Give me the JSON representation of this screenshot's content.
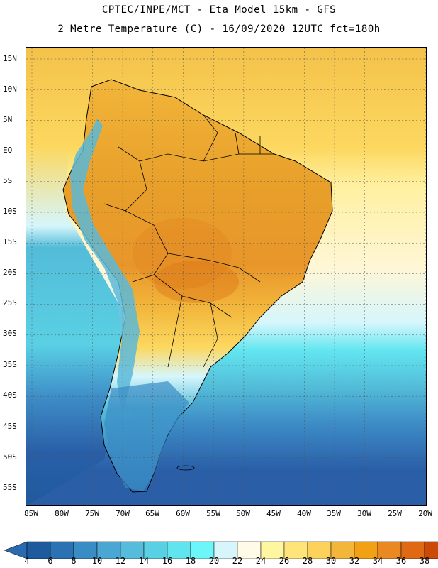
{
  "header": {
    "line1": "CPTEC/INPE/MCT -  Eta Model 15km - GFS",
    "line2": "2 Metre Temperature (C) - 16/09/2020 12UTC fct=180h"
  },
  "axes": {
    "lat_labels": [
      "15N",
      "10N",
      "5N",
      "EQ",
      "5S",
      "10S",
      "15S",
      "20S",
      "25S",
      "30S",
      "35S",
      "40S",
      "45S",
      "50S",
      "55S"
    ],
    "lon_labels": [
      "85W",
      "80W",
      "75W",
      "70W",
      "65W",
      "60W",
      "55W",
      "50W",
      "45W",
      "40W",
      "35W",
      "30W",
      "25W",
      "20W"
    ]
  },
  "colorbar": {
    "labels": [
      "4",
      "6",
      "8",
      "10",
      "12",
      "14",
      "16",
      "18",
      "20",
      "22",
      "24",
      "26",
      "28",
      "30",
      "32",
      "34",
      "36",
      "38"
    ],
    "colors": [
      "#1e5a9e",
      "#2a72b2",
      "#3a8cc4",
      "#4aa6d2",
      "#56bcdc",
      "#5ad0e4",
      "#60e4ee",
      "#6cf6fa",
      "#d6f6fc",
      "#fffbe6",
      "#fff6a0",
      "#ffe47a",
      "#fcd25a",
      "#f2b73a",
      "#f2a014",
      "#ea8822",
      "#e06a14",
      "#cc4a08"
    ],
    "under_color": "#2a6ab0",
    "over_color": "#c43c06"
  },
  "map_colors": {
    "ocean_deep": "#2a5fa8",
    "ocean_mid": "#3d8cc6",
    "ocean_light": "#53bcd8",
    "ocean_cyan": "#62e6f0",
    "land_hot": "#e89a2a",
    "land_warm": "#f2b53a",
    "land_mild": "#fcd860",
    "andes": "#5ab8d8",
    "patagonia": "#3a8cc4"
  }
}
